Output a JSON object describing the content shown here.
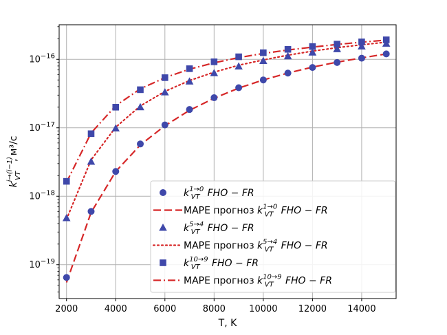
{
  "chart_data": {
    "type": "scatter",
    "xlabel": "T, K",
    "ylabel_base": "k",
    "ylabel_sub": "VT",
    "ylabel_sup": "i→(i−1)",
    "ylabel_units": ", м³/c",
    "xlim": [
      1700,
      15400
    ],
    "ylim": [
      3.2e-20,
      3.2e-16
    ],
    "yscale": "log",
    "grid": true,
    "legend_position": "lower-right",
    "x_ticks": [
      2000,
      4000,
      6000,
      8000,
      10000,
      12000,
      14000
    ],
    "x_tick_labels": [
      "2000",
      "4000",
      "6000",
      "8000",
      "10000",
      "12000",
      "14000"
    ],
    "y_ticks": [
      -19,
      -18,
      -17,
      -16
    ],
    "y_tick_exps": [
      "−19",
      "−18",
      "−17",
      "−16"
    ],
    "y_tick_base": "10",
    "color": "#3f48aa",
    "line_color": "#d62728",
    "x": [
      2000,
      3000,
      4000,
      5000,
      6000,
      7000,
      8000,
      9000,
      10000,
      11000,
      12000,
      13000,
      14000,
      15000
    ],
    "series": [
      {
        "marker": "circle",
        "line_style": "dashed",
        "label_sup": "1→0",
        "values": [
          6.5e-20,
          6e-19,
          2.3e-18,
          5.8e-18,
          1.1e-17,
          1.85e-17,
          2.75e-17,
          3.85e-17,
          5e-17,
          6.3e-17,
          7.6e-17,
          9e-17,
          1.04e-16,
          1.2e-16
        ],
        "fit": [
          5.5e-20,
          5.8e-19,
          2.3e-18,
          5.6e-18,
          1.07e-17,
          1.8e-17,
          2.7e-17,
          3.8e-17,
          5e-17,
          6.3e-17,
          7.7e-17,
          9.1e-17,
          1.05e-16,
          1.2e-16
        ]
      },
      {
        "marker": "triangle",
        "line_style": "dotted",
        "label_sup": "5→4",
        "values": [
          4.8e-19,
          3.2e-18,
          9.8e-18,
          2e-17,
          3.3e-17,
          4.75e-17,
          6.3e-17,
          7.9e-17,
          9.5e-17,
          1.11e-16,
          1.26e-16,
          1.41e-16,
          1.55e-16,
          1.7e-16
        ],
        "fit": [
          4.6e-19,
          3.4e-18,
          1.02e-17,
          2.08e-17,
          3.4e-17,
          4.9e-17,
          6.5e-17,
          8.2e-17,
          9.8e-17,
          1.15e-16,
          1.32e-16,
          1.48e-16,
          1.63e-16,
          1.78e-16
        ]
      },
      {
        "marker": "square",
        "line_style": "dashdot",
        "label_sup": "10→9",
        "values": [
          1.65e-18,
          8.2e-18,
          2e-17,
          3.6e-17,
          5.4e-17,
          7.3e-17,
          9.2e-17,
          1.09e-16,
          1.25e-16,
          1.4e-16,
          1.54e-16,
          1.67e-16,
          1.8e-16,
          1.93e-16
        ],
        "fit": [
          1.6e-18,
          8.4e-18,
          2.1e-17,
          3.7e-17,
          5.4e-17,
          7.2e-17,
          8.9e-17,
          1.06e-16,
          1.22e-16,
          1.37e-16,
          1.51e-16,
          1.65e-16,
          1.78e-16,
          1.91e-16
        ]
      }
    ],
    "legend": [
      {
        "kind": "marker",
        "series": 0,
        "base": "k",
        "sub": "VT",
        "sup": "1→0",
        "suffix": "FHO − FR"
      },
      {
        "kind": "line",
        "series": 0,
        "prefix": "МАРЕ прогноз",
        "base": "k",
        "sub": "VT",
        "sup": "1→0",
        "suffix": "FHO − FR"
      },
      {
        "kind": "marker",
        "series": 1,
        "base": "k",
        "sub": "VT",
        "sup": "5→4",
        "suffix": "FHO − FR"
      },
      {
        "kind": "line",
        "series": 1,
        "prefix": "МАРЕ прогноз",
        "base": "k",
        "sub": "VT",
        "sup": "5→4",
        "suffix": "FHO − FR"
      },
      {
        "kind": "marker",
        "series": 2,
        "base": "k",
        "sub": "VT",
        "sup": "10→9",
        "suffix": "FHO − FR"
      },
      {
        "kind": "line",
        "series": 2,
        "prefix": "МАРЕ прогноз",
        "base": "k",
        "sub": "VT",
        "sup": "10→9",
        "suffix": "FHO − FR"
      }
    ]
  }
}
